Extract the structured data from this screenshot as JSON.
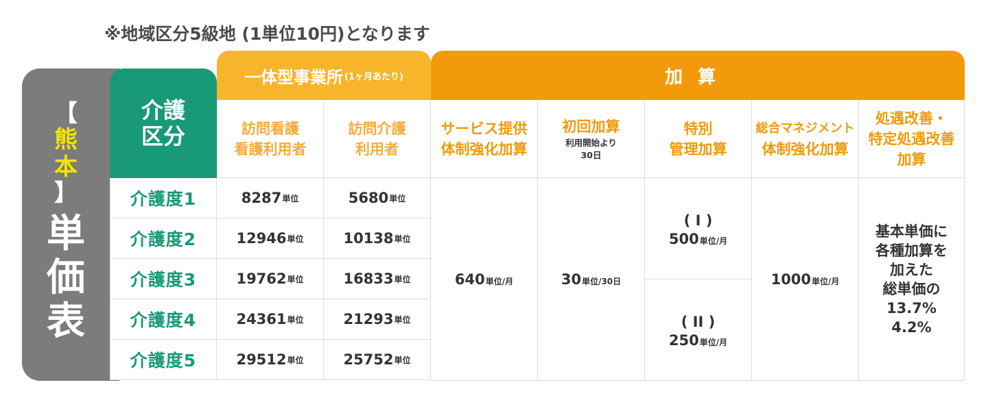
{
  "note": "※地域区分5級地 (1単位10円)となります",
  "side": {
    "bracket_open": "【",
    "city": "熊本",
    "bracket_close": "】",
    "title_chars": [
      "単",
      "価",
      "表"
    ]
  },
  "header": {
    "kaigo": "介護\n区分",
    "ittai_main": "一体型事業所",
    "ittai_sub": "(1ヶ月あたり)",
    "kasan": "加算"
  },
  "columns": [
    {
      "l1": "訪問看護",
      "l2": "看護利用者"
    },
    {
      "l1": "訪問介護",
      "l2": "利用者"
    },
    {
      "l1": "サービス提供",
      "l2": "体制強化加算"
    },
    {
      "l1": "初回加算",
      "sub1": "利用開始より",
      "sub2": "30日"
    },
    {
      "l1": "特別",
      "l2": "管理加算"
    },
    {
      "l1": "総合マネジメント",
      "l2": "体制強化加算"
    },
    {
      "l1": "処遇改善・",
      "l2": "特定処遇改善",
      "l3": "加算"
    }
  ],
  "rows": [
    {
      "label": "介護度1",
      "a": "8287",
      "b": "5680"
    },
    {
      "label": "介護度2",
      "a": "12946",
      "b": "10138"
    },
    {
      "label": "介護度3",
      "a": "19762",
      "b": "16833"
    },
    {
      "label": "介護度4",
      "a": "24361",
      "b": "21293"
    },
    {
      "label": "介護度5",
      "a": "29512",
      "b": "25752"
    }
  ],
  "unit": "単位",
  "service": {
    "num": "640",
    "unit": "単位/月"
  },
  "shokai": {
    "num": "30",
    "unit": "単位/30日"
  },
  "tokubetsu": [
    {
      "roman": "( I )",
      "num": "500",
      "unit": "単位/月"
    },
    {
      "roman": "( II )",
      "num": "250",
      "unit": "単位/月"
    }
  ],
  "sogo": {
    "num": "1000",
    "unit": "単位/月"
  },
  "shogu": "基本単価に\n各種加算を\n加えた\n総単価の\n13.7%\n4.2%"
}
